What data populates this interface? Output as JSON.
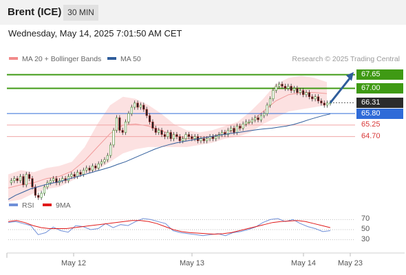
{
  "header": {
    "title": "Brent (ICE)",
    "timeframe": "30 MIN"
  },
  "timestamp": "Wednesday, May 14, 2025 7:01:50 AM CET",
  "legend": [
    {
      "label": "MA 20 + Bollinger Bands",
      "color": "#f08a8a"
    },
    {
      "label": "MA 50",
      "color": "#2f5d9b"
    }
  ],
  "credit": "Research © 2025 Trading Central",
  "rsi_legend": [
    {
      "label": "RSI",
      "color": "#6f8fd8"
    },
    {
      "label": "9MA",
      "color": "#e01818"
    }
  ],
  "levels": [
    {
      "label": "67.65",
      "value": 67.65,
      "kind": "resistance",
      "color": "#3f9a14"
    },
    {
      "label": "67.00",
      "value": 67.0,
      "kind": "resistance",
      "color": "#3f9a14"
    },
    {
      "label": "66.31",
      "value": 66.31,
      "kind": "last",
      "color": "#2b2b2b"
    },
    {
      "label": "65.80",
      "value": 65.8,
      "kind": "pivot",
      "color": "#2f6bd8"
    },
    {
      "label": "65.25",
      "value": 65.25,
      "kind": "support",
      "color": "#d83838"
    },
    {
      "label": "64.70",
      "value": 64.7,
      "kind": "support",
      "color": "#d83838"
    }
  ],
  "rsi_axis": [
    "70",
    "50",
    "30"
  ],
  "x_axis": [
    "May 12",
    "May 13",
    "May 14",
    "May 23"
  ],
  "chart_data": {
    "type": "candlestick",
    "interval": "30 MIN",
    "ylim": [
      62.1,
      68.0
    ],
    "candles": [
      62.5,
      62.6,
      62.7,
      62.6,
      62.8,
      62.4,
      62.9,
      62.7,
      62.3,
      61.9,
      61.8,
      62.0,
      62.3,
      62.5,
      62.6,
      62.7,
      62.5,
      62.6,
      62.7,
      62.6,
      62.8,
      62.9,
      62.8,
      63.0,
      62.9,
      63.1,
      63.2,
      63.1,
      63.3,
      63.2,
      63.4,
      63.5,
      63.6,
      63.8,
      64.3,
      65.0,
      65.6,
      65.0,
      64.9,
      65.4,
      65.8,
      66.1,
      66.3,
      66.1,
      66.2,
      66.0,
      65.7,
      65.4,
      65.1,
      64.9,
      65.0,
      64.8,
      64.7,
      64.9,
      64.6,
      64.8,
      64.7,
      64.5,
      64.6,
      64.8,
      64.7,
      64.6,
      64.7,
      64.5,
      64.6,
      64.5,
      64.6,
      64.7,
      64.6,
      64.7,
      64.8,
      64.9,
      64.8,
      65.0,
      65.1,
      64.9,
      65.2,
      65.1,
      65.3,
      65.4,
      65.4,
      65.5,
      65.6,
      65.5,
      65.7,
      65.8,
      66.2,
      66.5,
      66.9,
      67.1,
      67.2,
      67.1,
      67.0,
      67.1,
      66.9,
      67.0,
      66.8,
      66.9,
      66.7,
      66.8,
      66.6,
      66.5,
      66.6,
      66.4,
      66.3,
      66.2,
      66.3,
      66.31
    ],
    "ma50": [
      61.7,
      61.9,
      62.05,
      62.2,
      62.3,
      62.4,
      62.48,
      62.55,
      62.65,
      62.75,
      62.85,
      62.95,
      63.05,
      63.15,
      63.25,
      63.38,
      63.5,
      63.65,
      63.8,
      63.95,
      64.1,
      64.22,
      64.32,
      64.4,
      64.47,
      64.53,
      64.6,
      64.66,
      64.72,
      64.78,
      64.83,
      64.88,
      64.93,
      64.98,
      65.03,
      65.07,
      65.1,
      65.15,
      65.2,
      65.28,
      65.38,
      65.5,
      65.6,
      65.7,
      65.78
    ],
    "bollinger": {
      "upper": [
        62.9,
        63.1,
        63.0,
        63.2,
        63.3,
        63.5,
        64.2,
        65.3,
        66.2,
        66.6,
        66.5,
        66.2,
        65.8,
        65.3,
        65.0,
        64.9,
        65.0,
        65.2,
        65.4,
        65.9,
        66.5,
        67.2,
        67.5,
        67.6,
        67.5,
        67.3
      ],
      "lower": [
        61.6,
        61.7,
        62.0,
        62.2,
        62.3,
        62.6,
        62.9,
        63.1,
        63.5,
        63.9,
        64.1,
        64.2,
        64.2,
        64.2,
        64.2,
        64.3,
        64.4,
        64.6,
        64.7,
        64.9,
        65.3,
        65.6,
        65.9,
        66.0,
        66.1,
        66.2
      ]
    },
    "rsi": [
      64,
      66,
      62,
      58,
      40,
      44,
      55,
      48,
      45,
      58,
      56,
      50,
      52,
      62,
      54,
      60,
      58,
      66,
      72,
      70,
      66,
      62,
      48,
      44,
      42,
      40,
      38,
      40,
      42,
      38,
      44,
      46,
      50,
      55,
      64,
      70,
      72,
      66,
      70,
      62,
      56,
      52,
      46,
      48
    ],
    "rsi_9ma": [
      66,
      68,
      64,
      58,
      54,
      52,
      52,
      52,
      54,
      56,
      58,
      60,
      62,
      64,
      66,
      68,
      68,
      66,
      62,
      56,
      50,
      46,
      44,
      43,
      42,
      41,
      42,
      44,
      48,
      52,
      56,
      60,
      64,
      66,
      67,
      68,
      66,
      62,
      58,
      54
    ]
  }
}
